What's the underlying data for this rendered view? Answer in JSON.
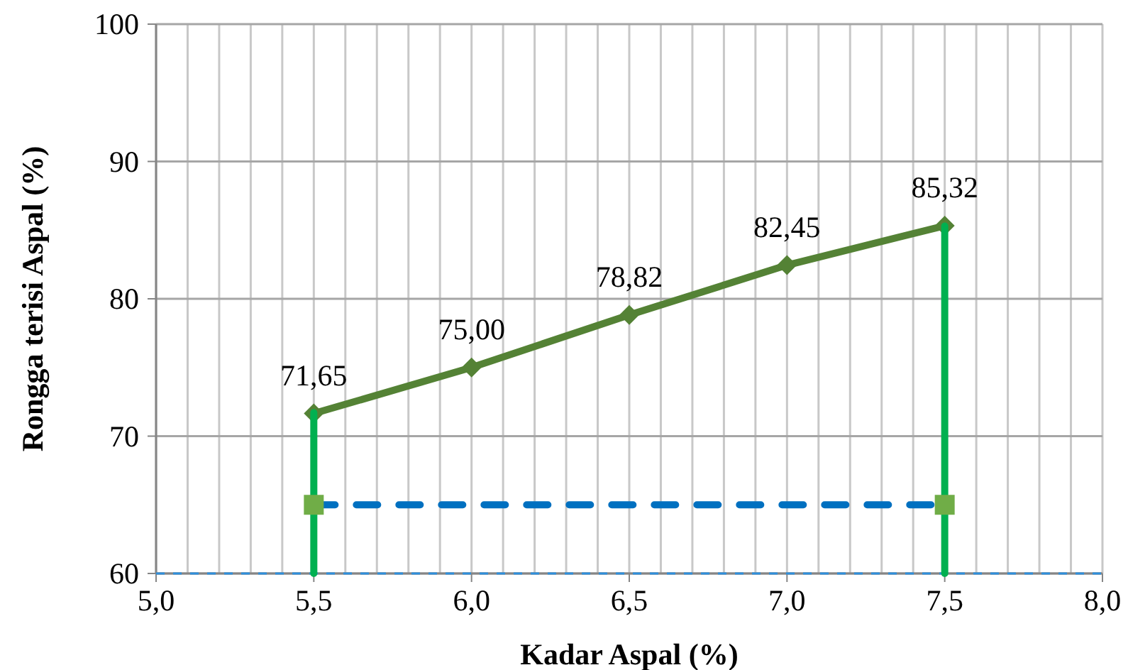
{
  "chart_data": {
    "type": "line",
    "xlabel": "Kadar Aspal (%)",
    "ylabel": "Rongga terisi Aspal (%)",
    "xlim": [
      5.0,
      8.0
    ],
    "ylim": [
      60,
      100
    ],
    "xticks": [
      {
        "value": 5.0,
        "label": "5,0"
      },
      {
        "value": 5.1,
        "label": null
      },
      {
        "value": 5.2,
        "label": null
      },
      {
        "value": 5.3,
        "label": null
      },
      {
        "value": 5.4,
        "label": null
      },
      {
        "value": 5.5,
        "label": "5,5"
      },
      {
        "value": 5.6,
        "label": null
      },
      {
        "value": 5.7,
        "label": null
      },
      {
        "value": 5.8,
        "label": null
      },
      {
        "value": 5.9,
        "label": null
      },
      {
        "value": 6.0,
        "label": "6,0"
      },
      {
        "value": 6.1,
        "label": null
      },
      {
        "value": 6.2,
        "label": null
      },
      {
        "value": 6.3,
        "label": null
      },
      {
        "value": 6.4,
        "label": null
      },
      {
        "value": 6.5,
        "label": "6,5"
      },
      {
        "value": 6.6,
        "label": null
      },
      {
        "value": 6.7,
        "label": null
      },
      {
        "value": 6.8,
        "label": null
      },
      {
        "value": 6.9,
        "label": null
      },
      {
        "value": 7.0,
        "label": "7,0"
      },
      {
        "value": 7.1,
        "label": null
      },
      {
        "value": 7.2,
        "label": null
      },
      {
        "value": 7.3,
        "label": null
      },
      {
        "value": 7.4,
        "label": null
      },
      {
        "value": 7.5,
        "label": "7,5"
      },
      {
        "value": 7.6,
        "label": null
      },
      {
        "value": 7.7,
        "label": null
      },
      {
        "value": 7.8,
        "label": null
      },
      {
        "value": 7.9,
        "label": null
      },
      {
        "value": 8.0,
        "label": "8,0"
      }
    ],
    "yticks": [
      60,
      70,
      80,
      90,
      100
    ],
    "grid": true,
    "series": [
      {
        "color": "#548235",
        "marker": "diamond",
        "line_style": "solid",
        "x": [
          5.5,
          6.0,
          6.5,
          7.0,
          7.5
        ],
        "values": [
          71.65,
          75.0,
          78.82,
          82.45,
          85.32
        ],
        "value_labels": [
          "71,65",
          "75,00",
          "78,82",
          "82,45",
          "85,32"
        ]
      },
      {
        "type": "line",
        "color": "#00b050",
        "marker": "none",
        "line_style": "solid",
        "x": [
          5.5,
          5.5
        ],
        "values": [
          60,
          71.7
        ]
      },
      {
        "type": "line",
        "color": "#00b050",
        "marker": "none",
        "line_style": "solid",
        "x": [
          7.5,
          7.5
        ],
        "values": [
          60,
          85.3
        ]
      },
      {
        "type": "line",
        "color": "#0070c0",
        "marker": "none",
        "line_style": "dashed",
        "x": [
          5.5,
          7.5
        ],
        "values": [
          65,
          65
        ]
      },
      {
        "type": "scatter",
        "color": "#70ad47",
        "marker": "square",
        "x": [
          5.5,
          7.5
        ],
        "values": [
          65,
          65
        ]
      }
    ],
    "ref_lines": [
      {
        "axis": "y",
        "value": 60,
        "color": "#2e8fdc",
        "line_style": "dashed"
      }
    ]
  }
}
